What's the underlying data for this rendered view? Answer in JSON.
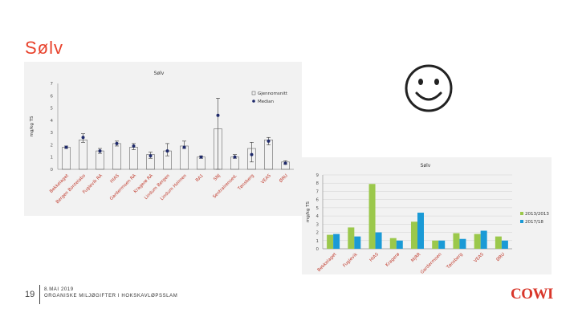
{
  "slide": {
    "title": "Sølv",
    "page_number": "19",
    "footer_line1": "8.MAI 2019",
    "footer_line2": "ORGANISKE MILJØGIFTER I HOKSKAVLØPSSLAM",
    "logo": "COWI",
    "smiley_icon": "smiley-face-icon",
    "accent_color": "#e8412b"
  },
  "chart_data": [
    {
      "type": "scatter",
      "title": "Sølv",
      "ylabel": "mg/kg TS",
      "ylim": [
        0,
        7
      ],
      "yticks": [
        0,
        1,
        2,
        3,
        4,
        5,
        6,
        7
      ],
      "legend": [
        "Gjennomsnitt",
        "Median"
      ],
      "legend_position": "top-right",
      "categories": [
        "Bekkelaget",
        "Bergen Bontelabo",
        "Fuglevik RA",
        "HIAS",
        "Gardermoen RA",
        "Kragerø RA",
        "Lindum Bergen",
        "Lindum Holmen",
        "RA1",
        "SNJ",
        "Sentralrensed.",
        "Tønsberg",
        "VEAS",
        "ØRU"
      ],
      "mean": [
        1.8,
        2.4,
        1.5,
        2.1,
        1.8,
        1.2,
        1.5,
        1.9,
        1.0,
        3.3,
        1.0,
        1.7,
        2.4,
        0.6
      ],
      "median": [
        1.8,
        2.6,
        1.5,
        2.1,
        1.9,
        1.1,
        1.5,
        1.8,
        1.0,
        4.4,
        1.0,
        1.2,
        2.3,
        0.5
      ],
      "err_low": [
        1.7,
        2.2,
        1.3,
        1.9,
        1.6,
        0.9,
        1.1,
        1.7,
        0.9,
        0.0,
        0.9,
        0.6,
        2.0,
        0.4
      ],
      "err_high": [
        1.9,
        2.9,
        1.7,
        2.3,
        2.1,
        1.4,
        2.1,
        2.3,
        1.1,
        5.8,
        1.2,
        2.2,
        2.6,
        0.7
      ]
    },
    {
      "type": "bar",
      "title": "Sølv",
      "ylabel": "mg/kg TS",
      "ylim": [
        0,
        9
      ],
      "yticks": [
        0,
        1,
        2,
        3,
        4,
        5,
        6,
        7,
        8,
        9
      ],
      "legend_position": "right",
      "categories": [
        "Bekkelaget",
        "Fuglevik",
        "HIAS",
        "Kragerø",
        "MjRR",
        "Gardermoen",
        "Tønsberg",
        "VEAS",
        "ØRU"
      ],
      "series": [
        {
          "name": "2013/2013",
          "color": "#9bc84b",
          "values": [
            1.7,
            2.6,
            7.9,
            1.3,
            3.3,
            1.0,
            1.9,
            1.8,
            1.5
          ]
        },
        {
          "name": "2017/18",
          "color": "#1a9ad6",
          "values": [
            1.8,
            1.5,
            2.0,
            1.0,
            4.4,
            1.0,
            1.2,
            2.2,
            1.0
          ]
        }
      ]
    }
  ]
}
